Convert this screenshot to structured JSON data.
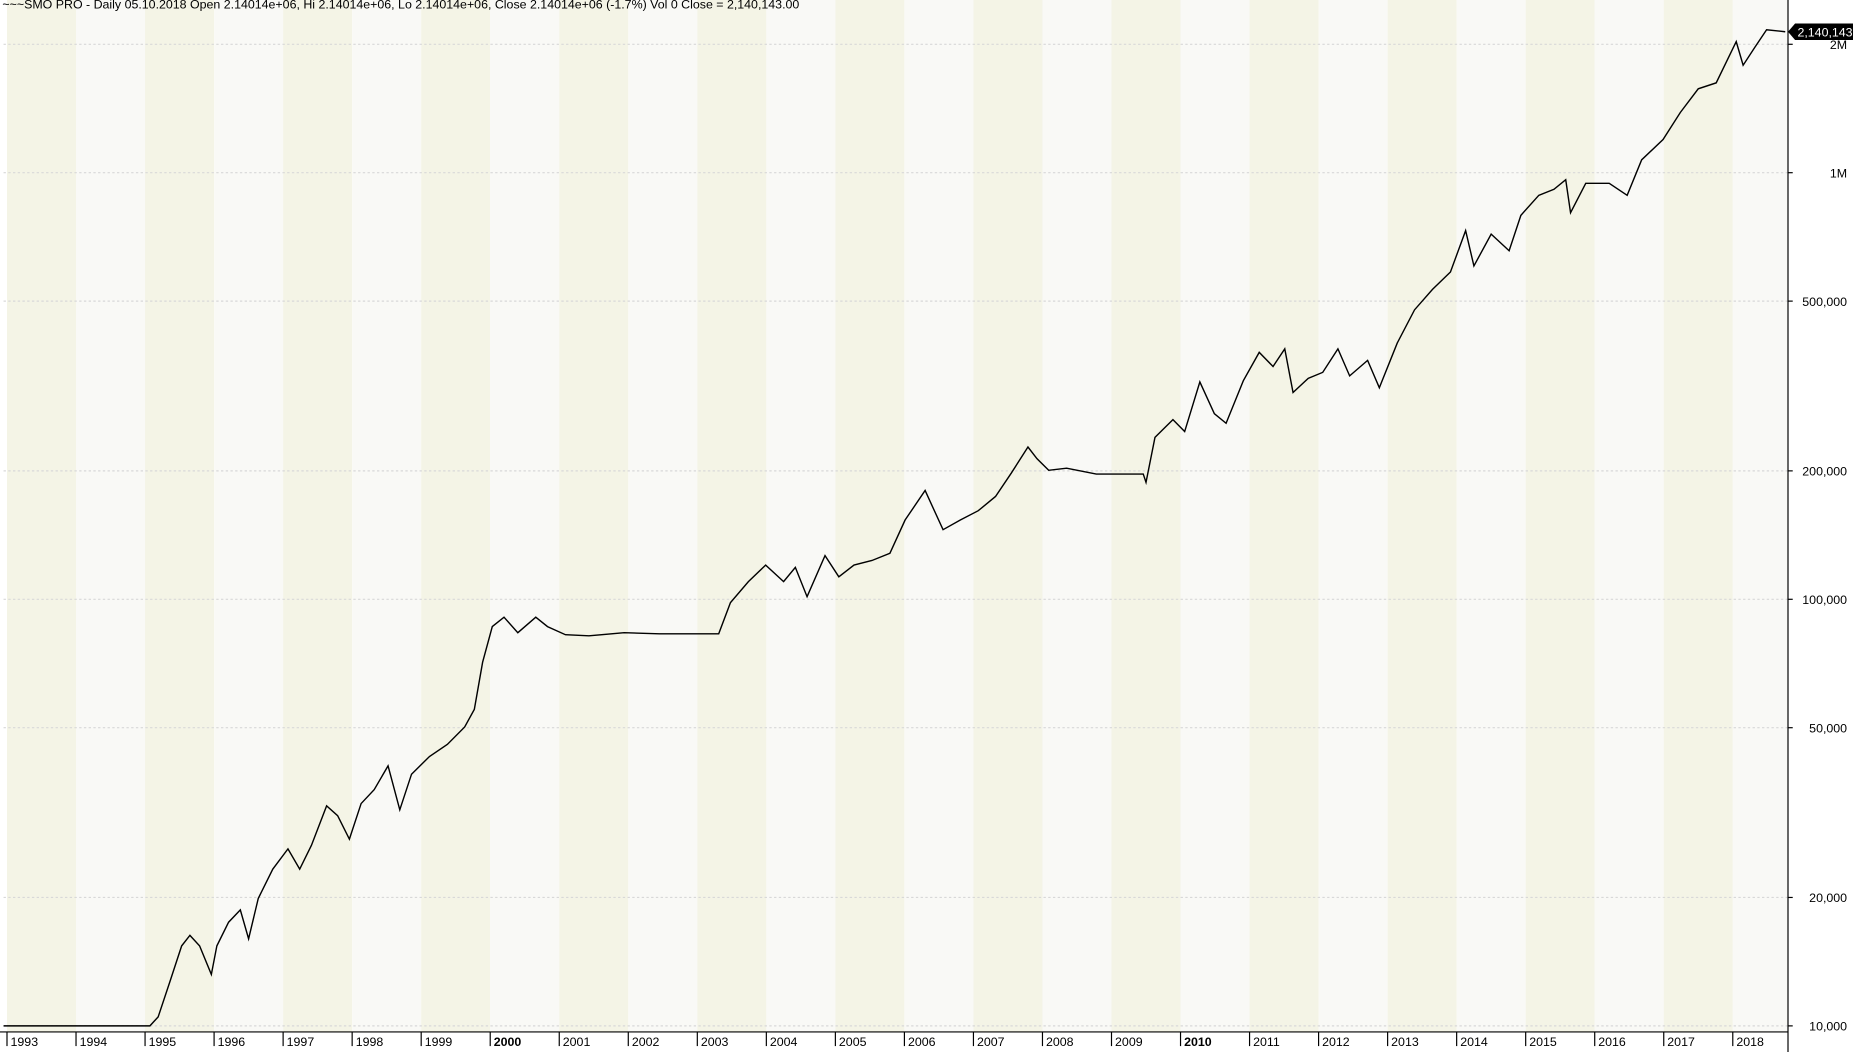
{
  "chart_data": {
    "type": "line",
    "title": "~~~SMO PRO - Daily 05.10.2018 Open 2.14014e+06, Hi 2.14014e+06, Lo 2.14014e+06, Close 2.14014e+06 (-1.7%) Vol 0 Close = 2,140,143.00",
    "x": [
      1992.95,
      1995.07,
      1995.19,
      1995.36,
      1995.53,
      1995.65,
      1995.79,
      1995.96,
      1996.04,
      1996.21,
      1996.38,
      1996.5,
      1996.64,
      1996.85,
      1997.07,
      1997.24,
      1997.41,
      1997.63,
      1997.79,
      1997.96,
      1998.13,
      1998.32,
      1998.52,
      1998.69,
      1998.86,
      1999.12,
      1999.38,
      1999.63,
      1999.77,
      1999.89,
      2000.03,
      2000.2,
      2000.4,
      2000.66,
      2000.83,
      2001.09,
      2001.43,
      2001.94,
      2002.45,
      2003.31,
      2003.48,
      2003.74,
      2003.99,
      2004.25,
      2004.42,
      2004.59,
      2004.85,
      2005.05,
      2005.27,
      2005.53,
      2005.79,
      2006.01,
      2006.3,
      2006.56,
      2006.81,
      2007.07,
      2007.32,
      2007.55,
      2007.79,
      2007.92,
      2008.09,
      2008.35,
      2008.78,
      2009.46,
      2009.5,
      2009.63,
      2009.89,
      2010.06,
      2010.28,
      2010.49,
      2010.66,
      2010.91,
      2011.14,
      2011.34,
      2011.51,
      2011.63,
      2011.85,
      2012.06,
      2012.28,
      2012.45,
      2012.71,
      2012.88,
      2013.14,
      2013.39,
      2013.65,
      2013.91,
      2014.13,
      2014.25,
      2014.5,
      2014.76,
      2014.93,
      2015.19,
      2015.41,
      2015.58,
      2015.65,
      2015.87,
      2016.21,
      2016.47,
      2016.68,
      2016.99,
      2017.24,
      2017.5,
      2017.76,
      2018.05,
      2018.15,
      2018.32,
      2018.49,
      2018.76
    ],
    "series": [
      {
        "color": "#000000",
        "values": [
          10000,
          10000,
          10500,
          12700,
          15400,
          16300,
          15400,
          13200,
          15400,
          17500,
          18700,
          16000,
          19900,
          23300,
          26000,
          23300,
          26500,
          32800,
          31100,
          27400,
          33200,
          35800,
          40700,
          32100,
          38900,
          42800,
          45700,
          50200,
          55200,
          71200,
          86300,
          90800,
          83500,
          90800,
          86300,
          82600,
          82100,
          83500,
          83000,
          83000,
          98200,
          110000,
          120300,
          110000,
          118800,
          101400,
          126600,
          112900,
          120300,
          123300,
          128200,
          153400,
          179900,
          145600,
          153400,
          161300,
          174200,
          197800,
          227500,
          213600,
          200600,
          202900,
          196600,
          196600,
          188000,
          239700,
          263800,
          247300,
          323300,
          272300,
          258600,
          325400,
          379200,
          351300,
          386400,
          305300,
          329600,
          340400,
          386400,
          334000,
          363100,
          313300,
          398900,
          477000,
          532600,
          585100,
          731600,
          604500,
          717800,
          656300,
          794300,
          885100,
          914200,
          962600,
          805800,
          944500,
          944500,
          885100,
          1072000,
          1196000,
          1384000,
          1573000,
          1624000,
          2029000,
          1786000,
          1968000,
          2163000,
          2140143
        ]
      }
    ],
    "annotations": [
      "2,140,143"
    ],
    "xlim": [
      1992.95,
      2018.8
    ],
    "xticks": [
      1993,
      1994,
      1995,
      1996,
      1997,
      1998,
      1999,
      2000,
      2001,
      2002,
      2003,
      2004,
      2005,
      2006,
      2007,
      2008,
      2009,
      2010,
      2011,
      2012,
      2013,
      2014,
      2015,
      2016,
      2017,
      2018
    ],
    "bold_xticks": [
      2000,
      2010
    ],
    "ylim": [
      9680,
      2540000
    ],
    "yscale": "log",
    "yticks": [
      {
        "value": 2000000,
        "label": "2M"
      },
      {
        "value": 1000000,
        "label": "1M"
      },
      {
        "value": 500000,
        "label": "500,000"
      },
      {
        "value": 200000,
        "label": "200,000"
      },
      {
        "value": 100000,
        "label": "100,000"
      },
      {
        "value": 50000,
        "label": "50,000"
      },
      {
        "value": 20000,
        "label": "20,000"
      },
      {
        "value": 10000,
        "label": "10,000"
      }
    ],
    "grid": true,
    "band_colors": [
      "#f4f4e6",
      "#f9f9f6"
    ]
  }
}
